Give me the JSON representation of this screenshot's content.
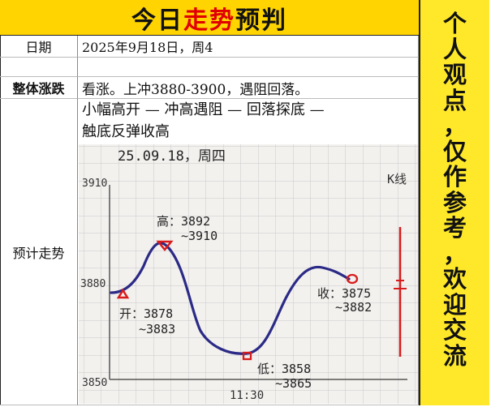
{
  "title": {
    "before": "今日",
    "highlight": "走势",
    "after": "预判"
  },
  "rows": {
    "date_label": "日期",
    "date_value": "2025年9月18日，周4",
    "overall_label": "整体涨跌",
    "overall_value": "看涨。上冲3880-3900，遇阻回落。",
    "trend_label": "预计走势",
    "trend_line1": "小幅高开 — 冲高遇阻 — 回落探底 —",
    "trend_line2": "触底反弹收高"
  },
  "sidebar": {
    "chars": [
      "个",
      "人",
      "观",
      "点",
      "，",
      "仅",
      "作",
      "参",
      "考",
      "，",
      "欢",
      "迎",
      "交",
      "流"
    ]
  },
  "sketch": {
    "header": "25.09.18，周四",
    "y_labels": [
      "3910",
      "3880",
      "3850"
    ],
    "x_label": "11:30",
    "kline_label": "K线",
    "annotations": {
      "open": [
        "开：3878",
        "~3883"
      ],
      "high": [
        "高：3892",
        "~3910"
      ],
      "low": [
        "低：3858",
        "~3865"
      ],
      "close": [
        "收：3875",
        "~3882"
      ]
    }
  },
  "colors": {
    "title_bg": "#ffd400",
    "side_bg": "#ffe82a",
    "highlight": "#e00000",
    "curve": "#2b2a86",
    "marker": "#d81b1b"
  }
}
